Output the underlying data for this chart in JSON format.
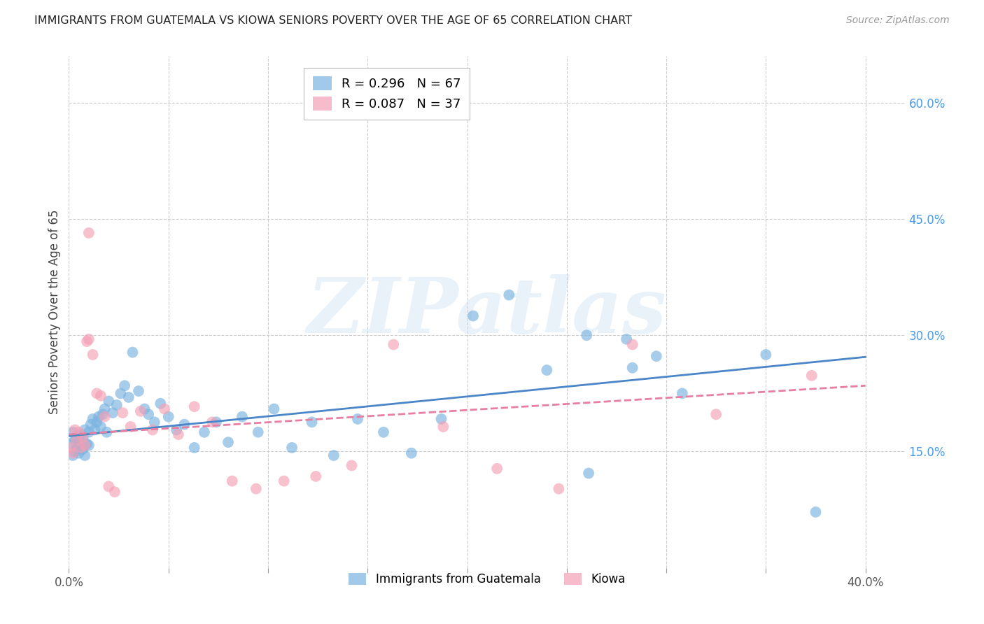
{
  "title": "IMMIGRANTS FROM GUATEMALA VS KIOWA SENIORS POVERTY OVER THE AGE OF 65 CORRELATION CHART",
  "source": "Source: ZipAtlas.com",
  "ylabel": "Seniors Poverty Over the Age of 65",
  "xlim": [
    0.0,
    0.42
  ],
  "ylim": [
    0.0,
    0.66
  ],
  "xticks": [
    0.0,
    0.05,
    0.1,
    0.15,
    0.2,
    0.25,
    0.3,
    0.35,
    0.4
  ],
  "ytick_positions": [
    0.15,
    0.3,
    0.45,
    0.6
  ],
  "ytick_labels": [
    "15.0%",
    "30.0%",
    "45.0%",
    "60.0%"
  ],
  "grid_color": "#cccccc",
  "bg_color": "#ffffff",
  "blue_color": "#7ab3e0",
  "pink_color": "#f4a0b5",
  "legend_R1": "R = 0.296",
  "legend_N1": "N = 67",
  "legend_R2": "R = 0.087",
  "legend_N2": "N = 37",
  "watermark": "ZIPatlas",
  "blue_scatter_x": [
    0.001,
    0.002,
    0.002,
    0.003,
    0.003,
    0.004,
    0.004,
    0.005,
    0.005,
    0.006,
    0.006,
    0.007,
    0.007,
    0.008,
    0.008,
    0.009,
    0.01,
    0.01,
    0.011,
    0.012,
    0.013,
    0.014,
    0.015,
    0.016,
    0.017,
    0.018,
    0.019,
    0.02,
    0.022,
    0.024,
    0.026,
    0.028,
    0.03,
    0.032,
    0.035,
    0.038,
    0.04,
    0.043,
    0.046,
    0.05,
    0.054,
    0.058,
    0.063,
    0.068,
    0.074,
    0.08,
    0.087,
    0.095,
    0.103,
    0.112,
    0.122,
    0.133,
    0.145,
    0.158,
    0.172,
    0.187,
    0.203,
    0.221,
    0.24,
    0.261,
    0.283,
    0.308,
    0.28,
    0.35,
    0.26,
    0.295,
    0.375
  ],
  "blue_scatter_y": [
    0.16,
    0.145,
    0.175,
    0.15,
    0.165,
    0.155,
    0.17,
    0.148,
    0.162,
    0.158,
    0.172,
    0.153,
    0.168,
    0.145,
    0.178,
    0.16,
    0.175,
    0.158,
    0.185,
    0.192,
    0.178,
    0.188,
    0.195,
    0.182,
    0.198,
    0.205,
    0.175,
    0.215,
    0.2,
    0.21,
    0.225,
    0.235,
    0.22,
    0.278,
    0.228,
    0.205,
    0.198,
    0.188,
    0.212,
    0.195,
    0.178,
    0.185,
    0.155,
    0.175,
    0.188,
    0.162,
    0.195,
    0.175,
    0.205,
    0.155,
    0.188,
    0.145,
    0.192,
    0.175,
    0.148,
    0.192,
    0.325,
    0.352,
    0.255,
    0.122,
    0.258,
    0.225,
    0.295,
    0.275,
    0.3,
    0.273,
    0.072
  ],
  "pink_scatter_x": [
    0.001,
    0.002,
    0.003,
    0.004,
    0.005,
    0.006,
    0.007,
    0.008,
    0.009,
    0.01,
    0.012,
    0.014,
    0.016,
    0.018,
    0.02,
    0.023,
    0.027,
    0.031,
    0.036,
    0.042,
    0.048,
    0.055,
    0.063,
    0.072,
    0.082,
    0.094,
    0.108,
    0.124,
    0.142,
    0.163,
    0.188,
    0.215,
    0.246,
    0.283,
    0.325,
    0.373,
    0.01
  ],
  "pink_scatter_y": [
    0.155,
    0.148,
    0.178,
    0.165,
    0.175,
    0.155,
    0.168,
    0.158,
    0.292,
    0.295,
    0.275,
    0.225,
    0.222,
    0.195,
    0.105,
    0.098,
    0.2,
    0.182,
    0.202,
    0.178,
    0.205,
    0.172,
    0.208,
    0.188,
    0.112,
    0.102,
    0.112,
    0.118,
    0.132,
    0.288,
    0.182,
    0.128,
    0.102,
    0.288,
    0.198,
    0.248,
    0.432
  ],
  "blue_trend_x": [
    0.0,
    0.4
  ],
  "blue_trend_y": [
    0.17,
    0.272
  ],
  "pink_trend_x": [
    0.0,
    0.4
  ],
  "pink_trend_y": [
    0.172,
    0.235
  ]
}
